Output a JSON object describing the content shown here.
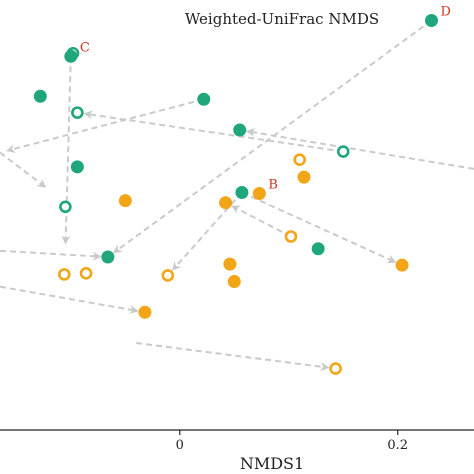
{
  "chart_data": {
    "type": "scatter",
    "title": "Weighted-UniFrac NMDS",
    "xlabel": "NMDS1",
    "ylabel": "",
    "xlim": [
      -0.165,
      0.27
    ],
    "ylim": [
      -0.235,
      0.185
    ],
    "x_ticks": [
      {
        "value": 0,
        "label": "0"
      },
      {
        "value": 0.2,
        "label": "0.2"
      }
    ],
    "colors": {
      "green": "#20a67d",
      "orange": "#f2a516",
      "arrow": "#c9cbcb",
      "label": "#d0321e",
      "axis": "#222222"
    },
    "points": [
      {
        "x": -0.098,
        "y": 0.133,
        "color": "green",
        "filled": false
      },
      {
        "x": -0.1,
        "y": 0.13,
        "color": "green",
        "filled": true,
        "label": "C"
      },
      {
        "x": 0.231,
        "y": 0.165,
        "color": "green",
        "filled": true,
        "label": "D"
      },
      {
        "x": -0.128,
        "y": 0.091,
        "color": "green",
        "filled": true
      },
      {
        "x": -0.094,
        "y": 0.075,
        "color": "green",
        "filled": false
      },
      {
        "x": 0.022,
        "y": 0.088,
        "color": "green",
        "filled": true
      },
      {
        "x": 0.055,
        "y": 0.058,
        "color": "green",
        "filled": true
      },
      {
        "x": 0.15,
        "y": 0.037,
        "color": "green",
        "filled": false
      },
      {
        "x": 0.11,
        "y": 0.029,
        "color": "orange",
        "filled": false
      },
      {
        "x": -0.094,
        "y": 0.022,
        "color": "green",
        "filled": true
      },
      {
        "x": 0.114,
        "y": 0.012,
        "color": "orange",
        "filled": true
      },
      {
        "x": 0.057,
        "y": -0.003,
        "color": "green",
        "filled": true
      },
      {
        "x": 0.073,
        "y": -0.004,
        "color": "orange",
        "filled": true,
        "label": "B"
      },
      {
        "x": 0.042,
        "y": -0.013,
        "color": "orange",
        "filled": true
      },
      {
        "x": -0.05,
        "y": -0.011,
        "color": "orange",
        "filled": true
      },
      {
        "x": -0.105,
        "y": -0.017,
        "color": "green",
        "filled": false
      },
      {
        "x": 0.102,
        "y": -0.046,
        "color": "orange",
        "filled": false
      },
      {
        "x": 0.127,
        "y": -0.058,
        "color": "green",
        "filled": true
      },
      {
        "x": -0.066,
        "y": -0.066,
        "color": "green",
        "filled": true
      },
      {
        "x": 0.046,
        "y": -0.073,
        "color": "orange",
        "filled": true
      },
      {
        "x": 0.204,
        "y": -0.074,
        "color": "orange",
        "filled": true
      },
      {
        "x": -0.086,
        "y": -0.082,
        "color": "orange",
        "filled": false
      },
      {
        "x": -0.106,
        "y": -0.083,
        "color": "orange",
        "filled": false
      },
      {
        "x": -0.011,
        "y": -0.084,
        "color": "orange",
        "filled": false
      },
      {
        "x": 0.05,
        "y": -0.09,
        "color": "orange",
        "filled": true
      },
      {
        "x": -0.032,
        "y": -0.12,
        "color": "orange",
        "filled": true
      },
      {
        "x": 0.143,
        "y": -0.175,
        "color": "orange",
        "filled": false
      }
    ],
    "arrows": [
      {
        "x1": 0.231,
        "y1": 0.165,
        "x2": -0.066,
        "y2": -0.066
      },
      {
        "x1": -0.1,
        "y1": 0.13,
        "x2": -0.105,
        "y2": -0.06
      },
      {
        "x1": 0.022,
        "y1": 0.088,
        "x2": -0.165,
        "y2": 0.036
      },
      {
        "x1": -0.165,
        "y1": 0.036,
        "x2": -0.118,
        "y2": -0.002
      },
      {
        "x1": 0.15,
        "y1": 0.037,
        "x2": -0.094,
        "y2": 0.075
      },
      {
        "x1": 0.27,
        "y1": 0.02,
        "x2": 0.055,
        "y2": 0.058
      },
      {
        "x1": 0.057,
        "y1": -0.003,
        "x2": 0.204,
        "y2": -0.074
      },
      {
        "x1": 0.102,
        "y1": -0.046,
        "x2": 0.042,
        "y2": -0.013
      },
      {
        "x1": 0.057,
        "y1": -0.003,
        "x2": -0.011,
        "y2": -0.084
      },
      {
        "x1": -0.165,
        "y1": -0.06,
        "x2": -0.066,
        "y2": -0.066
      },
      {
        "x1": -0.165,
        "y1": -0.095,
        "x2": -0.032,
        "y2": -0.12
      },
      {
        "x1": -0.04,
        "y1": -0.15,
        "x2": 0.143,
        "y2": -0.175
      }
    ]
  }
}
